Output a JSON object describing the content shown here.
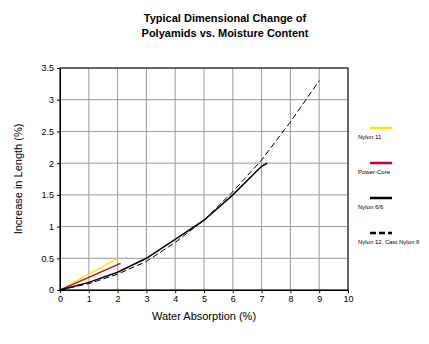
{
  "chart_data": {
    "type": "line",
    "title": "Typical Dimensional Change of\nPolyamids vs. Moisture Content",
    "x_label": "Water Absorption (%)",
    "y_label": "Increase in Length (%)",
    "xlim": [
      0,
      10
    ],
    "xticks": [
      0,
      1,
      2,
      3,
      4,
      5,
      6,
      7,
      8,
      9,
      10
    ],
    "ylim": [
      0,
      3.5
    ],
    "yticks": [
      0,
      0.5,
      1,
      1.5,
      2,
      2.5,
      3,
      3.5
    ],
    "grid": true,
    "legend": "right",
    "series": [
      {
        "name": "Nylon 11",
        "color": "#ffe600",
        "line_style": "solid",
        "x": [
          0,
          1,
          2
        ],
        "values": [
          0,
          0.25,
          0.5
        ]
      },
      {
        "name": "Power-Core",
        "color": "#cc0033",
        "line_style": "solid",
        "x": [
          0,
          1,
          2.1
        ],
        "values": [
          0,
          0.2,
          0.42
        ]
      },
      {
        "name": "Nylon 6/6",
        "color": "#000000",
        "line_style": "solid",
        "x": [
          0,
          1,
          2,
          3,
          4,
          5,
          6,
          7,
          7.2
        ],
        "values": [
          0,
          0.12,
          0.28,
          0.5,
          0.8,
          1.1,
          1.5,
          1.95,
          2.0
        ]
      },
      {
        "name": "Nylon 12, Cast Nylon 6",
        "color": "#000000",
        "line_style": "dashed",
        "x": [
          0,
          1,
          2,
          3,
          4,
          5,
          6,
          7,
          8,
          9
        ],
        "values": [
          0,
          0.1,
          0.25,
          0.45,
          0.75,
          1.1,
          1.55,
          2.05,
          2.65,
          3.3
        ]
      }
    ]
  }
}
